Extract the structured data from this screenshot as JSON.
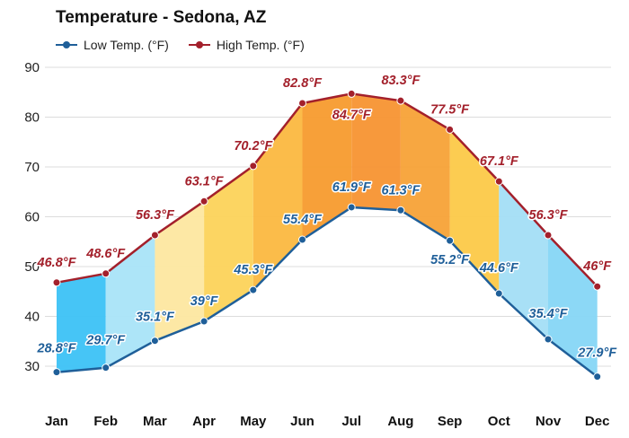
{
  "chart_data": {
    "type": "area",
    "title": "Temperature - Sedona, AZ",
    "xlabel": "",
    "ylabel": "",
    "categories": [
      "Jan",
      "Feb",
      "Mar",
      "Apr",
      "May",
      "Jun",
      "Jul",
      "Aug",
      "Sep",
      "Oct",
      "Nov",
      "Dec"
    ],
    "ylim": [
      25,
      92
    ],
    "yticks": [
      30,
      40,
      50,
      60,
      70,
      80,
      90
    ],
    "grid": true,
    "legend_position": "top-left",
    "series": [
      {
        "name": "Low Temp. (°F)",
        "color": "#1f5f99",
        "values": [
          28.8,
          29.7,
          35.1,
          39,
          45.3,
          55.4,
          61.9,
          61.3,
          55.2,
          44.6,
          35.4,
          27.9
        ],
        "labels": [
          "28.8°F",
          "29.7°F",
          "35.1°F",
          "39°F",
          "45.3°F",
          "55.4°F",
          "61.9°F",
          "61.3°F",
          "55.2°F",
          "44.6°F",
          "35.4°F",
          "27.9°F"
        ]
      },
      {
        "name": "High Temp. (°F)",
        "color": "#a3202b",
        "values": [
          46.8,
          48.6,
          56.3,
          63.1,
          70.2,
          82.8,
          84.7,
          83.3,
          77.5,
          67.1,
          56.3,
          46
        ],
        "labels": [
          "46.8°F",
          "48.6°F",
          "56.3°F",
          "63.1°F",
          "70.2°F",
          "82.8°F",
          "84.7°F",
          "83.3°F",
          "77.5°F",
          "67.1°F",
          "56.3°F",
          "46°F"
        ]
      }
    ],
    "band_colors": [
      "#3cc2f6",
      "#a9e4f8",
      "#fde7a0",
      "#fcd35a",
      "#fbb840",
      "#f79b2e",
      "#f79332",
      "#f7a237",
      "#fcc948",
      "#a3def6",
      "#86d6f6",
      "#2dbaf4"
    ]
  }
}
